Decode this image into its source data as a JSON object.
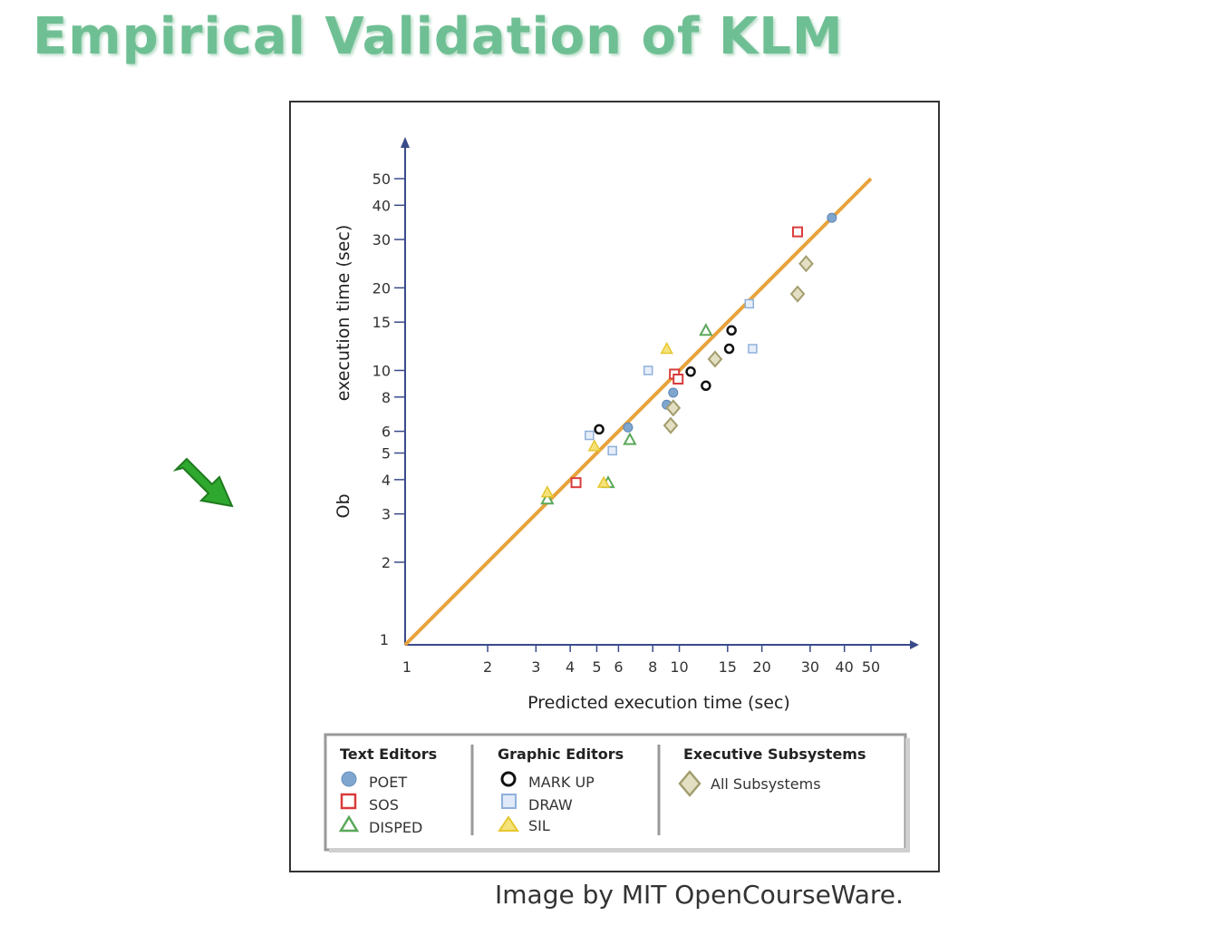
{
  "page": {
    "title": "Empirical Validation of KLM",
    "credit": "Image by MIT OpenCourseWare."
  },
  "colors": {
    "title": "#6fbf94",
    "arrow": "#2ea82e",
    "fit_line": "#e8a33d",
    "axis": "#3a4a8a",
    "POET": "#7fa6cf",
    "SOS": "#d93b3b",
    "DISPED": "#5aa85a",
    "MARK UP": "#111111",
    "DRAW": "#8fb0dc",
    "SIL": "#e6c62e",
    "All Subsystems": "#a39d6e"
  },
  "chart_data": {
    "type": "scatter",
    "title": "",
    "xlabel": "Predicted execution time (sec)",
    "ylabel_parts": [
      "Ob",
      "execution time (sec)"
    ],
    "xscale": "log",
    "yscale": "log",
    "xlim": [
      1,
      60
    ],
    "ylim": [
      1,
      60
    ],
    "x_ticks": [
      1,
      2,
      3,
      4,
      5,
      6,
      8,
      10,
      15,
      20,
      30,
      40,
      50
    ],
    "y_ticks": [
      1,
      2,
      3,
      4,
      5,
      6,
      8,
      10,
      15,
      20,
      30,
      40,
      50
    ],
    "fit_line": {
      "x": [
        1,
        50
      ],
      "y": [
        1,
        50
      ]
    },
    "legend_placement": "bottom",
    "legend_groups": [
      {
        "heading": "Text Editors",
        "items": [
          "POET",
          "SOS",
          "DISPED"
        ]
      },
      {
        "heading": "Graphic Editors",
        "items": [
          "MARK UP",
          "DRAW",
          "SIL"
        ]
      },
      {
        "heading": "Executive Subsystems",
        "items": [
          "All Subsystems"
        ]
      }
    ],
    "series": [
      {
        "name": "POET",
        "marker": "circle-filled",
        "x": [
          6.5,
          9,
          9.5,
          36
        ],
        "y": [
          6.2,
          7.5,
          8.3,
          36
        ]
      },
      {
        "name": "SOS",
        "marker": "square-red",
        "x": [
          4.2,
          9.6,
          9.9,
          27
        ],
        "y": [
          3.9,
          9.7,
          9.3,
          32
        ]
      },
      {
        "name": "DISPED",
        "marker": "triangle-green",
        "x": [
          3.3,
          5.5,
          6.6,
          12.5
        ],
        "y": [
          3.4,
          3.9,
          5.6,
          14
        ]
      },
      {
        "name": "MARK UP",
        "marker": "circle-open",
        "x": [
          5.1,
          11,
          12.5,
          15.2,
          15.5
        ],
        "y": [
          6.1,
          9.9,
          8.8,
          12,
          14
        ]
      },
      {
        "name": "DRAW",
        "marker": "square-blue",
        "x": [
          4.7,
          5.7,
          7.7,
          18,
          18.5
        ],
        "y": [
          5.8,
          5.1,
          10,
          17.5,
          12
        ]
      },
      {
        "name": "SIL",
        "marker": "triangle-yellow",
        "x": [
          3.3,
          4.9,
          5.3,
          9
        ],
        "y": [
          3.6,
          5.3,
          3.9,
          12
        ]
      },
      {
        "name": "All Subsystems",
        "marker": "diamond",
        "x": [
          9.3,
          9.5,
          13.5,
          27,
          29
        ],
        "y": [
          6.3,
          7.3,
          11,
          19,
          24.5
        ]
      }
    ]
  }
}
